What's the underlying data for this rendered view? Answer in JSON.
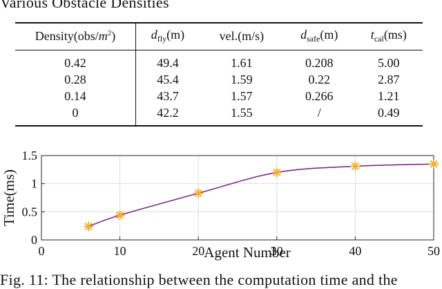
{
  "caption_top": "Various Obstacle Densities",
  "table": {
    "headers": {
      "density": {
        "text": "Density(obs/",
        "var": "m",
        "sup": "2",
        "tail": ")"
      },
      "d_fly": {
        "var": "d",
        "sub": "fly",
        "unit": "(m)"
      },
      "vel": {
        "text": "vel.(m/s)"
      },
      "d_safe": {
        "var": "d",
        "sub": "safe",
        "unit": "(m)"
      },
      "t_cal": {
        "var": "t",
        "sub": "cal",
        "unit": "(ms)"
      }
    },
    "rows": [
      [
        "0.42",
        "49.4",
        "1.61",
        "0.208",
        "5.00"
      ],
      [
        "0.28",
        "45.4",
        "1.59",
        "0.22",
        "2.87"
      ],
      [
        "0.14",
        "43.7",
        "1.57",
        "0.266",
        "1.21"
      ],
      [
        "0",
        "42.2",
        "1.55",
        "/",
        "0.49"
      ]
    ]
  },
  "chart_data": {
    "type": "line",
    "title": "",
    "xlabel": "Agent Number",
    "ylabel": "Time(ms)",
    "xlim": [
      0,
      50
    ],
    "ylim": [
      0,
      1.5
    ],
    "xticks": [
      0,
      10,
      20,
      30,
      40,
      50
    ],
    "yticks": [
      0,
      0.5,
      1,
      1.5
    ],
    "xtick_labels": [
      "0",
      "10",
      "20",
      "30",
      "40",
      "50"
    ],
    "ytick_labels": [
      "0",
      "0.5",
      "1",
      "1.5"
    ],
    "grid": true,
    "series": [
      {
        "points_x": [
          6,
          10,
          20,
          30,
          40,
          50
        ],
        "points_y": [
          0.24,
          0.44,
          0.83,
          1.2,
          1.31,
          1.35
        ],
        "marker": "star",
        "marker_color": "#f0b030",
        "line_color": "#7b2a88"
      }
    ]
  },
  "caption_bottom": "Fig. 11: The relationship between the computation time and the"
}
